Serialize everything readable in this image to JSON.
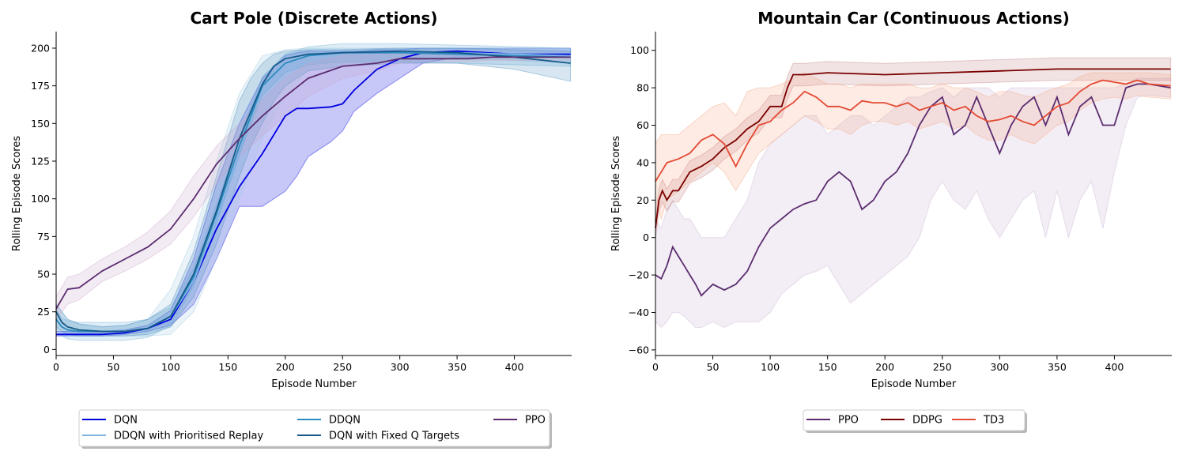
{
  "chart_data": [
    {
      "type": "line",
      "title": "Cart Pole (Discrete Actions)",
      "xlabel": "Episode Number",
      "ylabel": "Rolling Episode Scores",
      "xlim": [
        0,
        450
      ],
      "ylim": [
        -4,
        211
      ],
      "xticks": [
        0,
        50,
        100,
        150,
        200,
        250,
        300,
        350,
        400
      ],
      "yticks": [
        0,
        25,
        50,
        75,
        100,
        125,
        150,
        175,
        200
      ],
      "legend_position": "bottom-center",
      "legend_columns": 3,
      "series": [
        {
          "name": "DQN",
          "color": "#0000e0",
          "x": [
            0,
            10,
            20,
            40,
            60,
            80,
            100,
            120,
            140,
            160,
            180,
            200,
            210,
            220,
            240,
            250,
            260,
            280,
            300,
            320,
            350,
            400,
            449
          ],
          "y": [
            10,
            10,
            10,
            10,
            11,
            14,
            20,
            45,
            80,
            108,
            130,
            155,
            160,
            160,
            161,
            163,
            172,
            186,
            193,
            197,
            198,
            196,
            196
          ],
          "lower": [
            9,
            9,
            9,
            9,
            10,
            12,
            16,
            30,
            60,
            95,
            95,
            105,
            115,
            128,
            138,
            145,
            158,
            170,
            180,
            190,
            194,
            194,
            194
          ],
          "upper": [
            12,
            12,
            12,
            12,
            13,
            16,
            26,
            60,
            110,
            150,
            180,
            195,
            197,
            198,
            198,
            198,
            198,
            199,
            199,
            200,
            200,
            200,
            200
          ]
        },
        {
          "name": "DDQN with Prioritised Replay",
          "color": "#7fb3e3",
          "x": [
            0,
            5,
            10,
            20,
            40,
            60,
            80,
            100,
            120,
            140,
            160,
            180,
            200,
            220,
            250,
            300,
            350,
            400,
            449
          ],
          "y": [
            20,
            15,
            13,
            12,
            12,
            12,
            14,
            22,
            45,
            85,
            130,
            175,
            190,
            195,
            197,
            197,
            197,
            196,
            195
          ],
          "lower": [
            10,
            9,
            9,
            9,
            9,
            9,
            9,
            10,
            25,
            60,
            100,
            140,
            170,
            185,
            190,
            192,
            193,
            192,
            190
          ],
          "upper": [
            30,
            25,
            20,
            17,
            15,
            16,
            20,
            40,
            75,
            125,
            170,
            195,
            199,
            200,
            200,
            200,
            200,
            200,
            200
          ],
          "band_color": "#9ecae1"
        },
        {
          "name": "DDQN",
          "color": "#2b8cbe",
          "x": [
            0,
            5,
            10,
            20,
            40,
            60,
            80,
            100,
            120,
            140,
            160,
            180,
            200,
            220,
            250,
            300,
            350,
            400,
            449
          ],
          "y": [
            20,
            15,
            13,
            12,
            12,
            12,
            14,
            22,
            48,
            90,
            135,
            175,
            190,
            195,
            197,
            197,
            196,
            195,
            194
          ],
          "band_color": "#6baed6"
        },
        {
          "name": "DQN with Fixed Q Targets",
          "color": "#155a8a",
          "x": [
            0,
            5,
            10,
            20,
            40,
            60,
            80,
            100,
            120,
            140,
            160,
            170,
            180,
            190,
            200,
            220,
            250,
            300,
            350,
            400,
            449
          ],
          "y": [
            25,
            18,
            15,
            13,
            12,
            12,
            14,
            22,
            50,
            92,
            140,
            158,
            176,
            188,
            193,
            196,
            197,
            198,
            197,
            194,
            190
          ],
          "lower": [
            15,
            12,
            10,
            9,
            9,
            9,
            10,
            15,
            35,
            70,
            115,
            135,
            150,
            165,
            175,
            185,
            188,
            190,
            190,
            186,
            178
          ],
          "upper": [
            30,
            25,
            20,
            17,
            15,
            16,
            20,
            30,
            65,
            115,
            165,
            180,
            190,
            196,
            198,
            199,
            199,
            200,
            200,
            199,
            198
          ],
          "band_color": "#4a8dbd"
        },
        {
          "name": "PPO",
          "color": "#5b2c6f",
          "x": [
            0,
            10,
            20,
            40,
            60,
            80,
            100,
            120,
            140,
            160,
            180,
            200,
            220,
            250,
            280,
            300,
            320,
            340,
            360,
            380,
            400,
            420,
            449
          ],
          "y": [
            27,
            40,
            41,
            52,
            60,
            68,
            80,
            100,
            123,
            140,
            155,
            168,
            180,
            188,
            190,
            193,
            193,
            193,
            193,
            194,
            194,
            194,
            194
          ],
          "lower": [
            20,
            30,
            33,
            45,
            52,
            60,
            70,
            88,
            110,
            128,
            142,
            155,
            168,
            180,
            185,
            190,
            191,
            191,
            191,
            192,
            192,
            192,
            192
          ],
          "upper": [
            35,
            48,
            50,
            60,
            68,
            78,
            92,
            115,
            135,
            150,
            165,
            180,
            190,
            195,
            196,
            196,
            196,
            196,
            196,
            196,
            196,
            196,
            196
          ],
          "band_color": "#c8a2c8"
        }
      ]
    },
    {
      "type": "line",
      "title": "Mountain Car (Continuous Actions)",
      "xlabel": "Episode Number",
      "ylabel": "Rolling Episode Scores",
      "xlim": [
        0,
        450
      ],
      "ylim": [
        -63,
        110
      ],
      "xticks": [
        0,
        50,
        100,
        150,
        200,
        250,
        300,
        350,
        400
      ],
      "yticks": [
        -60,
        -40,
        -20,
        0,
        20,
        40,
        60,
        80,
        100
      ],
      "legend_position": "bottom-center",
      "legend_columns": 3,
      "series": [
        {
          "name": "PPO",
          "color": "#5b2c6f",
          "x": [
            0,
            5,
            10,
            15,
            20,
            25,
            30,
            35,
            40,
            50,
            60,
            70,
            80,
            90,
            100,
            110,
            120,
            130,
            140,
            150,
            160,
            170,
            180,
            190,
            200,
            210,
            220,
            230,
            240,
            250,
            260,
            270,
            280,
            290,
            300,
            310,
            320,
            330,
            340,
            350,
            360,
            370,
            380,
            390,
            400,
            410,
            420,
            430,
            449
          ],
          "y": [
            -20,
            -22,
            -15,
            -5,
            -10,
            -15,
            -20,
            -25,
            -31,
            -25,
            -28,
            -25,
            -18,
            -5,
            5,
            10,
            15,
            18,
            20,
            30,
            35,
            30,
            15,
            20,
            30,
            35,
            45,
            60,
            70,
            75,
            55,
            60,
            75,
            60,
            45,
            60,
            70,
            75,
            60,
            75,
            55,
            70,
            75,
            60,
            60,
            80,
            82,
            82,
            80
          ],
          "lower": [
            -45,
            -48,
            -45,
            -40,
            -40,
            -42,
            -45,
            -48,
            -48,
            -45,
            -48,
            -45,
            -45,
            -45,
            -40,
            -30,
            -25,
            -20,
            -18,
            -15,
            -25,
            -35,
            -30,
            -25,
            -20,
            -15,
            -10,
            0,
            20,
            30,
            20,
            15,
            25,
            10,
            0,
            10,
            20,
            25,
            0,
            25,
            0,
            20,
            30,
            5,
            35,
            60,
            75,
            76,
            75
          ],
          "upper": [
            10,
            5,
            15,
            20,
            15,
            10,
            10,
            5,
            0,
            0,
            0,
            10,
            20,
            40,
            50,
            55,
            60,
            65,
            65,
            55,
            60,
            65,
            65,
            60,
            65,
            70,
            75,
            75,
            78,
            80,
            75,
            80,
            80,
            80,
            75,
            80,
            80,
            80,
            80,
            80,
            80,
            80,
            80,
            80,
            80,
            82,
            85,
            85,
            85
          ],
          "band_color": "#c8b0d0"
        },
        {
          "name": "DDPG",
          "color": "#7a0000",
          "x": [
            0,
            3,
            6,
            10,
            15,
            20,
            30,
            40,
            50,
            60,
            70,
            80,
            90,
            100,
            110,
            115,
            120,
            130,
            150,
            200,
            250,
            300,
            350,
            400,
            449
          ],
          "y": [
            5,
            20,
            25,
            20,
            25,
            25,
            35,
            38,
            42,
            48,
            52,
            58,
            62,
            70,
            70,
            80,
            87,
            87,
            88,
            87,
            88,
            89,
            90,
            90,
            90
          ],
          "band_color": "#c08080"
        },
        {
          "name": "TD3",
          "color": "#e34a33",
          "x": [
            0,
            5,
            10,
            20,
            30,
            40,
            50,
            60,
            70,
            80,
            90,
            100,
            110,
            120,
            130,
            140,
            150,
            160,
            170,
            180,
            190,
            200,
            210,
            220,
            230,
            240,
            250,
            260,
            270,
            280,
            290,
            300,
            310,
            320,
            330,
            340,
            350,
            360,
            370,
            380,
            390,
            400,
            410,
            420,
            430,
            449
          ],
          "y": [
            30,
            35,
            40,
            42,
            45,
            52,
            55,
            50,
            38,
            50,
            60,
            62,
            68,
            72,
            78,
            75,
            70,
            70,
            68,
            73,
            72,
            72,
            70,
            72,
            68,
            70,
            72,
            68,
            70,
            65,
            62,
            63,
            65,
            62,
            60,
            65,
            70,
            72,
            78,
            82,
            84,
            83,
            82,
            84,
            82,
            81
          ],
          "lower": [
            20,
            10,
            20,
            25,
            30,
            35,
            40,
            35,
            25,
            35,
            45,
            50,
            55,
            60,
            65,
            62,
            58,
            58,
            55,
            60,
            62,
            62,
            60,
            62,
            58,
            60,
            62,
            58,
            60,
            55,
            52,
            52,
            55,
            52,
            50,
            55,
            60,
            62,
            68,
            72,
            74,
            75,
            74,
            76,
            75,
            74
          ],
          "upper": [
            50,
            55,
            55,
            55,
            60,
            65,
            70,
            72,
            65,
            78,
            80,
            80,
            82,
            85,
            88,
            85,
            82,
            82,
            80,
            82,
            82,
            82,
            82,
            82,
            80,
            80,
            82,
            80,
            80,
            78,
            75,
            78,
            78,
            76,
            75,
            78,
            80,
            82,
            86,
            88,
            88,
            88,
            88,
            88,
            88,
            87
          ],
          "band_color": "#f4a582"
        }
      ]
    }
  ]
}
